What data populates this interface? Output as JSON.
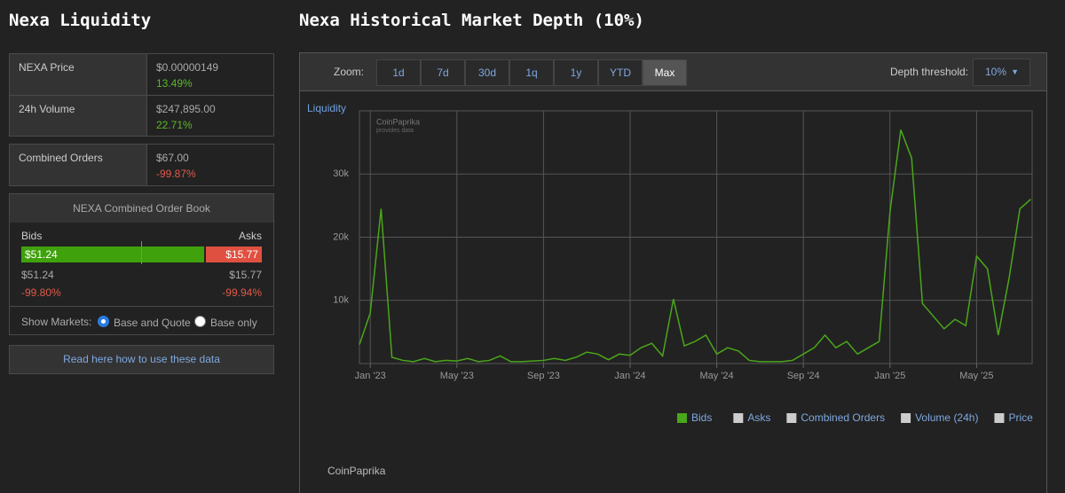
{
  "sidebar": {
    "title": "Nexa Liquidity",
    "stats": [
      {
        "label": "NEXA Price",
        "value": "$0.00000149",
        "change": "13.49%"
      },
      {
        "label": "24h Volume",
        "value": "$247,895.00",
        "change": "22.71%"
      },
      {
        "label": "Combined Orders",
        "value": "$67.00",
        "change": "-99.87%"
      }
    ],
    "order_book": {
      "title": "NEXA Combined Order Book",
      "bids_label": "Bids",
      "asks_label": "Asks",
      "bids": {
        "value": 51.24,
        "label": "$51.24"
      },
      "asks": {
        "value": 15.77,
        "label": "$15.77"
      },
      "bids_total": "$51.24",
      "asks_total": "$15.77",
      "bids_change": "-99.80%",
      "asks_change": "-99.94%",
      "show_markets": "Show Markets:",
      "options": [
        "Base and Quote",
        "Base only"
      ]
    },
    "link": "Read here how to use these data"
  },
  "main": {
    "title": "Nexa Historical Market Depth (10%)",
    "zoom_label": "Zoom:",
    "zoom_options": [
      "1d",
      "7d",
      "30d",
      "1q",
      "1y",
      "YTD",
      "Max"
    ],
    "depth_label": "Depth threshold:",
    "depth_value": "10%"
  },
  "chart_data": {
    "type": "line",
    "y_axis_label": "Liquidity",
    "watermark": [
      "CoinPaprika",
      "provides data"
    ],
    "categories": [
      null,
      "Jan '23",
      null,
      null,
      null,
      null,
      null,
      null,
      null,
      "May '23",
      null,
      null,
      null,
      null,
      null,
      null,
      null,
      "Sep '23",
      null,
      null,
      null,
      null,
      null,
      null,
      null,
      "Jan '24",
      null,
      null,
      null,
      null,
      null,
      null,
      null,
      "May '24",
      null,
      null,
      null,
      null,
      null,
      null,
      null,
      "Sep '24",
      null,
      null,
      null,
      null,
      null,
      null,
      null,
      "Jan '25",
      null,
      null,
      null,
      null,
      null,
      null,
      null,
      "May '25",
      null,
      null,
      null,
      null,
      null
    ],
    "series": [
      {
        "name": "Bids",
        "color": "#4aa61a",
        "values": [
          3000,
          8000,
          24500,
          1000,
          500,
          300,
          800,
          300,
          500,
          400,
          800,
          300,
          500,
          1200,
          300,
          300,
          400,
          500,
          800,
          500,
          1000,
          1800,
          1500,
          600,
          1500,
          1300,
          2500,
          3200,
          1200,
          10200,
          2800,
          3500,
          4500,
          1500,
          2500,
          2000,
          500,
          300,
          300,
          300,
          500,
          1500,
          2500,
          4500,
          2500,
          3500,
          1500,
          2500,
          3500,
          24000,
          37000,
          32500,
          9500,
          7500,
          5500,
          7000,
          6000,
          17000,
          15000,
          4500,
          13500,
          24500,
          26000
        ]
      }
    ],
    "legend_inactive": [
      "Asks",
      "Combined Orders",
      "Volume (24h)",
      "Price"
    ],
    "ylim": [
      0,
      40000
    ],
    "yticks": [
      {
        "value": 10000,
        "label": "10k"
      },
      {
        "value": 20000,
        "label": "20k"
      },
      {
        "value": 30000,
        "label": "30k"
      }
    ],
    "grid": true,
    "credits": "CoinPaprika"
  }
}
